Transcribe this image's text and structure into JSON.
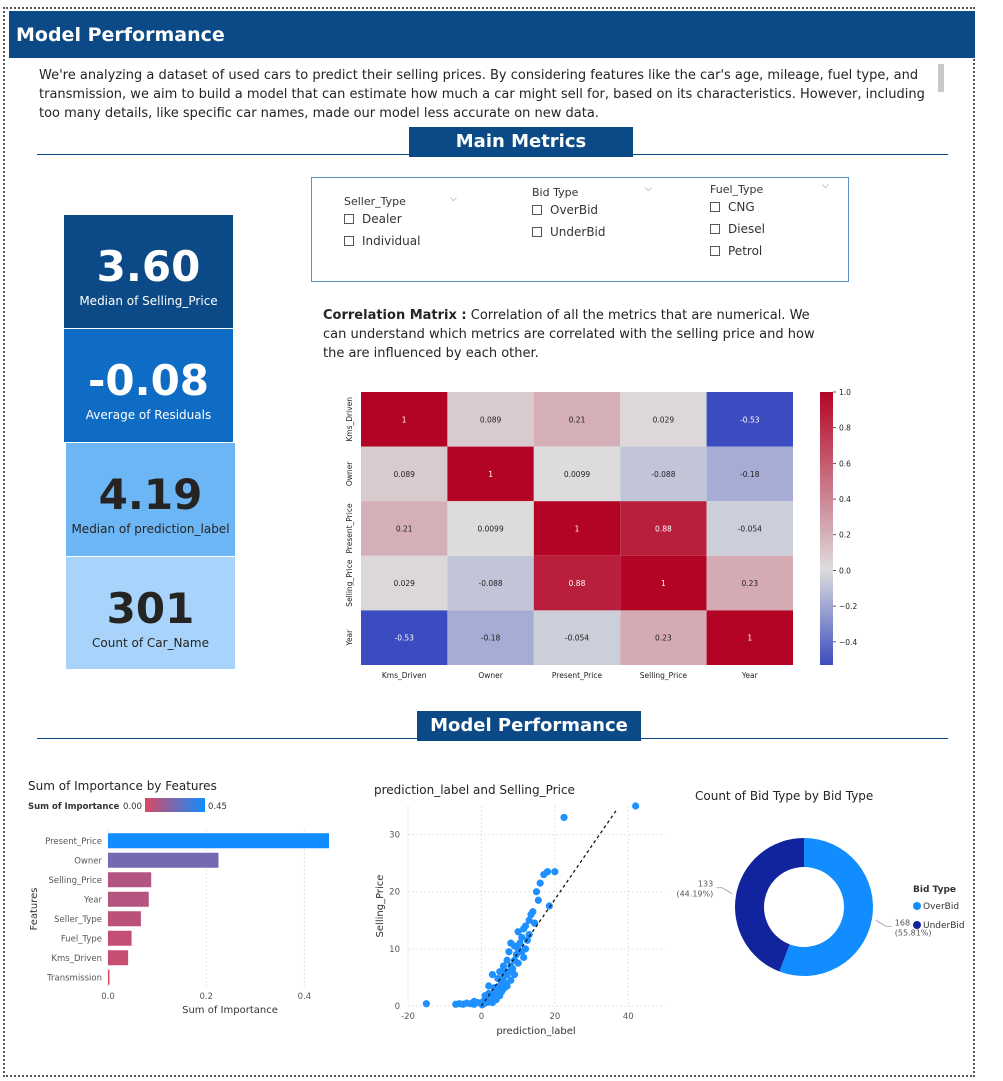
{
  "header": {
    "title": "Model Performance"
  },
  "intro": {
    "text": "We're analyzing a dataset of used cars to predict their selling prices. By considering features like the car's age, mileage, fuel type, and transmission, we aim to build a model that can estimate how much a car might sell for, based on its characteristics. However, including too many details, like specific car names, made our model less accurate on new data."
  },
  "sections": {
    "main_metrics": "Main Metrics",
    "model_performance": "Model Performance"
  },
  "cards": [
    {
      "value": "3.60",
      "label": "Median of Selling_Price",
      "bg": "#0b4a86",
      "fg": "#ffffff"
    },
    {
      "value": "-0.08",
      "label": "Average of Residuals",
      "bg": "#0f6cc4",
      "fg": "#ffffff"
    },
    {
      "value": "4.19",
      "label": "Median of prediction_label",
      "bg": "#6cb6f5",
      "fg": "#252423"
    },
    {
      "value": "301",
      "label": "Count of Car_Name",
      "bg": "#a8d4fb",
      "fg": "#252423"
    }
  ],
  "slicers": [
    {
      "title": "Seller_Type",
      "options": [
        "Dealer",
        "Individual"
      ]
    },
    {
      "title": "Bid Type",
      "options": [
        "OverBid",
        "UnderBid"
      ]
    },
    {
      "title": "Fuel_Type",
      "options": [
        "CNG",
        "Diesel",
        "Petrol"
      ]
    }
  ],
  "correlation": {
    "heading": "Correlation Matrix :",
    "text": "Correlation of all the metrics that are numerical. We can understand which metrics are correlated with the selling price and how the are influenced by each other."
  },
  "chart_data": [
    {
      "type": "heatmap",
      "rows": [
        "Kms_Driven",
        "Owner",
        "Present_Price",
        "Selling_Price",
        "Year"
      ],
      "cols": [
        "Kms_Driven",
        "Owner",
        "Present_Price",
        "Selling_Price",
        "Year"
      ],
      "values": [
        [
          1,
          0.089,
          0.21,
          0.029,
          -0.53
        ],
        [
          0.089,
          1,
          0.0099,
          -0.088,
          -0.18
        ],
        [
          0.21,
          0.0099,
          1,
          0.88,
          -0.054
        ],
        [
          0.029,
          -0.088,
          0.88,
          1,
          0.23
        ],
        [
          -0.53,
          -0.18,
          -0.054,
          0.23,
          1
        ]
      ],
      "labels": [
        [
          "1",
          "0.089",
          "0.21",
          "0.029",
          "-0.53"
        ],
        [
          "0.089",
          "1",
          "0.0099",
          "-0.088",
          "-0.18"
        ],
        [
          "0.21",
          "0.0099",
          "1",
          "0.88",
          "-0.054"
        ],
        [
          "0.029",
          "-0.088",
          "0.88",
          "1",
          "0.23"
        ],
        [
          "-0.53",
          "-0.18",
          "-0.054",
          "0.23",
          "1"
        ]
      ],
      "colorbar_ticks": [
        "1.0",
        "0.8",
        "0.6",
        "0.4",
        "0.2",
        "0.0",
        "−0.2",
        "−0.4"
      ],
      "colorbar_values": [
        1.0,
        0.8,
        0.6,
        0.4,
        0.2,
        0.0,
        -0.2,
        -0.4
      ],
      "vmin": -0.53,
      "vmax": 1.0,
      "colors": {
        "low": "#3b4cc0",
        "mid": "#dddddd",
        "high": "#b40426"
      }
    },
    {
      "type": "bar",
      "title": "Sum of Importance by Features",
      "legend_title": "Sum of Importance",
      "legend_min": "0.00",
      "legend_max": "0.45",
      "categories": [
        "Present_Price",
        "Owner",
        "Selling_Price",
        "Year",
        "Seller_Type",
        "Fuel_Type",
        "Kms_Driven",
        "Transmission"
      ],
      "values": [
        0.45,
        0.225,
        0.088,
        0.083,
        0.067,
        0.048,
        0.041,
        0.003
      ],
      "xlabel": "Sum of Importance",
      "ylabel": "Features",
      "xticks": [
        "0.0",
        "0.2",
        "0.4"
      ],
      "xtick_values": [
        0,
        0.2,
        0.4
      ],
      "xlim": [
        0,
        0.45
      ],
      "colors": {
        "low": "#d94763",
        "high": "#118dff"
      }
    },
    {
      "type": "scatter",
      "title": "prediction_label and Selling_Price",
      "xlabel": "prediction_label",
      "ylabel": "Selling_Price",
      "xticks": [
        "-20",
        "0",
        "20",
        "40"
      ],
      "xtick_values": [
        -20,
        0,
        20,
        40
      ],
      "yticks": [
        "0",
        "10",
        "20",
        "30"
      ],
      "ytick_values": [
        0,
        10,
        20,
        30
      ],
      "xlim": [
        -20,
        50
      ],
      "ylim": [
        0,
        35
      ],
      "trendline": [
        [
          0,
          0
        ],
        [
          37,
          34.5
        ]
      ],
      "color": "#1e90ff",
      "points": [
        [
          -15,
          0.4
        ],
        [
          -7,
          0.3
        ],
        [
          -6,
          0.4
        ],
        [
          -5,
          0.3
        ],
        [
          -4,
          0.5
        ],
        [
          -3,
          0.4
        ],
        [
          -2,
          0.3
        ],
        [
          -1,
          0.6
        ],
        [
          0,
          0.4
        ],
        [
          0.5,
          0.8
        ],
        [
          1,
          0.5
        ],
        [
          1.5,
          1.0
        ],
        [
          2,
          0.7
        ],
        [
          2.5,
          1.2
        ],
        [
          3,
          1.5
        ],
        [
          3,
          0.6
        ],
        [
          3.5,
          2.0
        ],
        [
          4,
          1.1
        ],
        [
          4,
          2.5
        ],
        [
          4.5,
          3.0
        ],
        [
          5,
          1.8
        ],
        [
          5,
          3.5
        ],
        [
          5.5,
          2.5
        ],
        [
          5.5,
          4.2
        ],
        [
          6,
          3.0
        ],
        [
          6,
          5.0
        ],
        [
          6.5,
          4.0
        ],
        [
          7,
          5.5
        ],
        [
          7,
          3.5
        ],
        [
          7.5,
          6.0
        ],
        [
          8,
          4.5
        ],
        [
          8,
          7.0
        ],
        [
          8.5,
          6.5
        ],
        [
          9,
          8.0
        ],
        [
          9,
          5.5
        ],
        [
          9.5,
          9.0
        ],
        [
          10,
          7.5
        ],
        [
          10,
          10.0
        ],
        [
          10.5,
          11.0
        ],
        [
          11,
          9.5
        ],
        [
          11,
          12.0
        ],
        [
          11.5,
          8.5
        ],
        [
          12,
          14.0
        ],
        [
          12.5,
          11.5
        ],
        [
          13,
          15.0
        ],
        [
          13,
          12.5
        ],
        [
          14,
          16.5
        ],
        [
          14.5,
          14.5
        ],
        [
          15,
          20.0
        ],
        [
          15.5,
          18.5
        ],
        [
          16,
          21.5
        ],
        [
          17,
          23.0
        ],
        [
          18,
          23.5
        ],
        [
          18.5,
          17.5
        ],
        [
          20,
          23.5
        ],
        [
          22.5,
          33.0
        ],
        [
          42,
          35.0
        ],
        [
          3,
          5.5
        ],
        [
          2,
          3.5
        ],
        [
          6,
          7.0
        ],
        [
          7.5,
          9.5
        ],
        [
          8,
          11.0
        ],
        [
          10,
          13.0
        ],
        [
          12,
          10.0
        ],
        [
          5,
          6.0
        ],
        [
          4.5,
          4.8
        ],
        [
          6.5,
          6.0
        ],
        [
          9,
          10.5
        ],
        [
          1,
          1.8
        ],
        [
          2,
          2.2
        ],
        [
          3.5,
          3.2
        ],
        [
          -2,
          0.8
        ],
        [
          0.2,
          0.2
        ],
        [
          7,
          8.0
        ],
        [
          11.5,
          13.5
        ],
        [
          13.5,
          16.0
        ]
      ]
    },
    {
      "type": "pie",
      "donut": true,
      "title": "Count of Bid Type by Bid Type",
      "legend_title": "Bid Type",
      "slices": [
        {
          "name": "OverBid",
          "value": 168,
          "label": "168",
          "pct": "(55.81%)",
          "color": "#118dff"
        },
        {
          "name": "UnderBid",
          "value": 133,
          "label": "133",
          "pct": "(44.19%)",
          "color": "#12239e"
        }
      ]
    }
  ]
}
